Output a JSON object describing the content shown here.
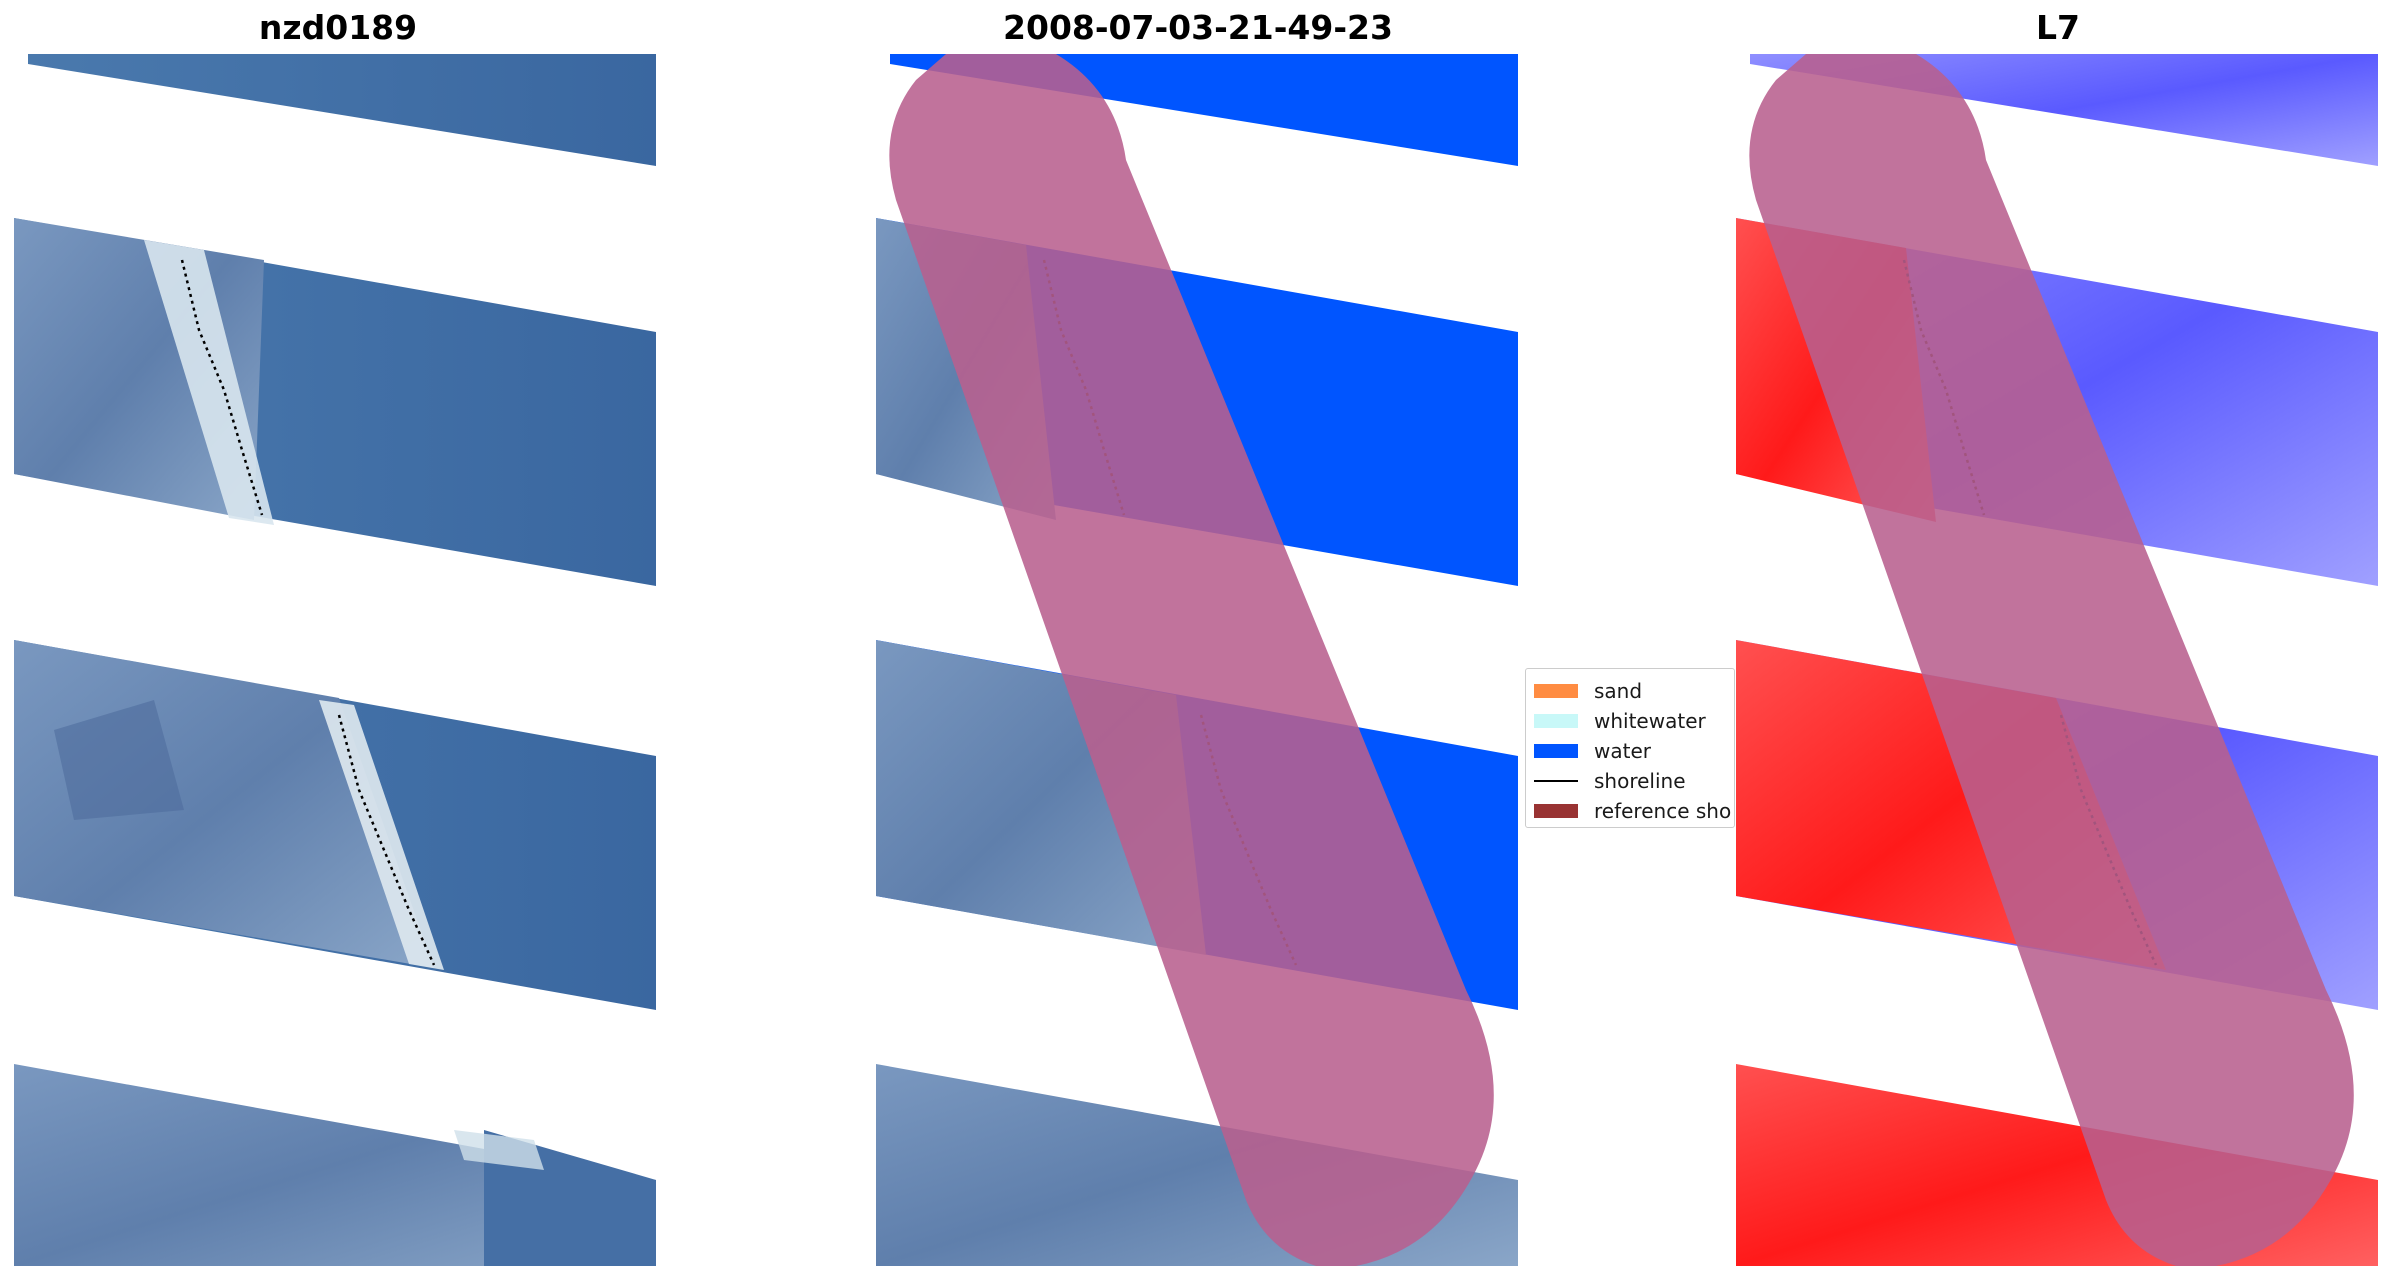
{
  "titles": {
    "left": "nzd0189",
    "middle": "2008-07-03-21-49-23",
    "right": "L7"
  },
  "legend": {
    "items": [
      {
        "label": "sand",
        "color": "#ff8c42"
      },
      {
        "label": "whitewater",
        "color": "#c8f8f8"
      },
      {
        "label": "water",
        "color": "#0055ff"
      },
      {
        "label": "shoreline",
        "color": "#000000"
      },
      {
        "label": "reference sho",
        "color": "#993333"
      }
    ]
  },
  "colors": {
    "imagery_water": "#3f6ea6",
    "imagery_land": "#6b8bb5",
    "classified_water": "#0055ff",
    "reference_overlay": "#b8608e",
    "index_land_red": "#ff2a2a",
    "index_water_blue": "#6c6cff"
  }
}
